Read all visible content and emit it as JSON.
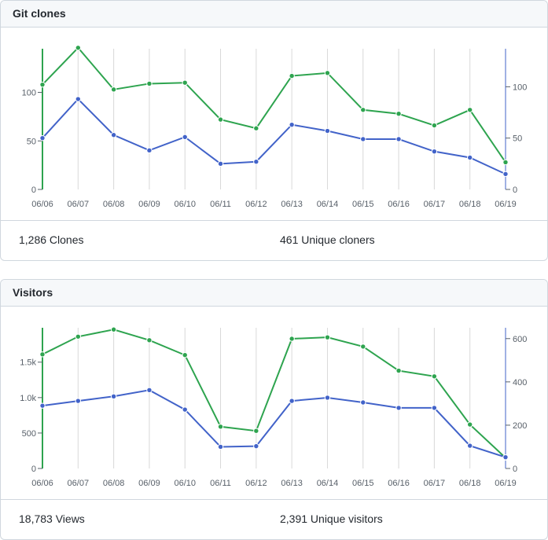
{
  "clones": {
    "title": "Git clones",
    "summary": {
      "total": "1,286 Clones",
      "unique": "461 Unique cloners"
    }
  },
  "visitors": {
    "title": "Visitors",
    "summary": {
      "total": "18,783 Views",
      "unique": "2,391 Unique visitors"
    }
  },
  "colors": {
    "total": "#2ea44f",
    "unique": "#4263c9",
    "grid": "#d8d8d8"
  },
  "chart_data": [
    {
      "type": "line",
      "categories": [
        "06/06",
        "06/07",
        "06/08",
        "06/09",
        "06/10",
        "06/11",
        "06/12",
        "06/13",
        "06/14",
        "06/15",
        "06/16",
        "06/17",
        "06/18",
        "06/19"
      ],
      "left_axis": {
        "ticks": [
          0,
          50,
          100
        ],
        "tick_labels": [
          "0",
          "50",
          "100"
        ],
        "range": [
          0,
          145
        ]
      },
      "right_axis": {
        "ticks": [
          0,
          50,
          100
        ],
        "tick_labels": [
          "0",
          "50",
          "100"
        ],
        "range": [
          0,
          137
        ]
      },
      "series": [
        {
          "axis": "left",
          "color": "#2ea44f",
          "values": [
            108,
            146,
            103,
            109,
            110,
            72,
            63,
            117,
            120,
            82,
            78,
            66,
            82,
            28
          ]
        },
        {
          "axis": "right",
          "color": "#4263c9",
          "values": [
            50,
            88,
            53,
            38,
            51,
            25,
            27,
            63,
            57,
            49,
            49,
            37,
            31,
            15
          ]
        }
      ],
      "grid": true
    },
    {
      "type": "line",
      "categories": [
        "06/06",
        "06/07",
        "06/08",
        "06/09",
        "06/10",
        "06/11",
        "06/12",
        "06/13",
        "06/14",
        "06/15",
        "06/16",
        "06/17",
        "06/18",
        "06/19"
      ],
      "left_axis": {
        "ticks": [
          0,
          500,
          1000,
          1500
        ],
        "tick_labels": [
          "0",
          "500",
          "1.0k",
          "1.5k"
        ],
        "range": [
          0,
          1985
        ]
      },
      "right_axis": {
        "ticks": [
          0,
          200,
          400,
          600
        ],
        "tick_labels": [
          "0",
          "200",
          "400",
          "600"
        ],
        "range": [
          0,
          650
        ]
      },
      "series": [
        {
          "axis": "left",
          "color": "#2ea44f",
          "values": [
            1610,
            1860,
            1960,
            1810,
            1600,
            590,
            530,
            1830,
            1850,
            1720,
            1380,
            1300,
            620,
            150
          ]
        },
        {
          "axis": "right",
          "color": "#4263c9",
          "values": [
            290,
            312,
            333,
            362,
            272,
            100,
            103,
            312,
            327,
            305,
            280,
            280,
            105,
            52
          ]
        }
      ],
      "grid": true
    }
  ]
}
